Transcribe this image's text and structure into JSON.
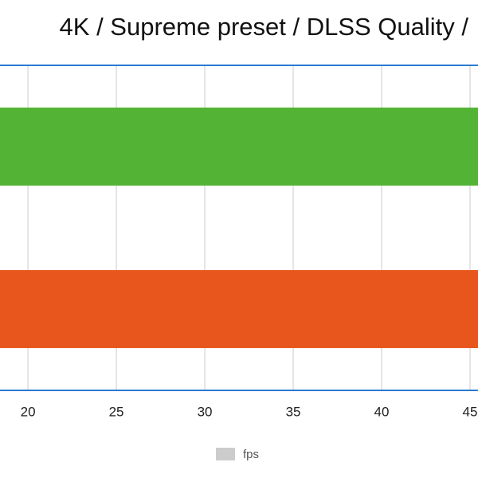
{
  "chart_data": {
    "type": "hbar",
    "title": "4K / Supreme preset / DLSS Quality /",
    "categories": [
      null,
      null
    ],
    "series": [
      {
        "name": "fps",
        "color": "#cccccc",
        "values": [
          46,
          46
        ]
      }
    ],
    "bar_colors": [
      "#52b334",
      "#e8561e"
    ],
    "xlim": [
      18.42,
      45.45
    ],
    "xticks": [
      20,
      25,
      30,
      35,
      40,
      45
    ],
    "grid": true,
    "axis_color": "#2a7bd0",
    "legend": "bottom"
  }
}
